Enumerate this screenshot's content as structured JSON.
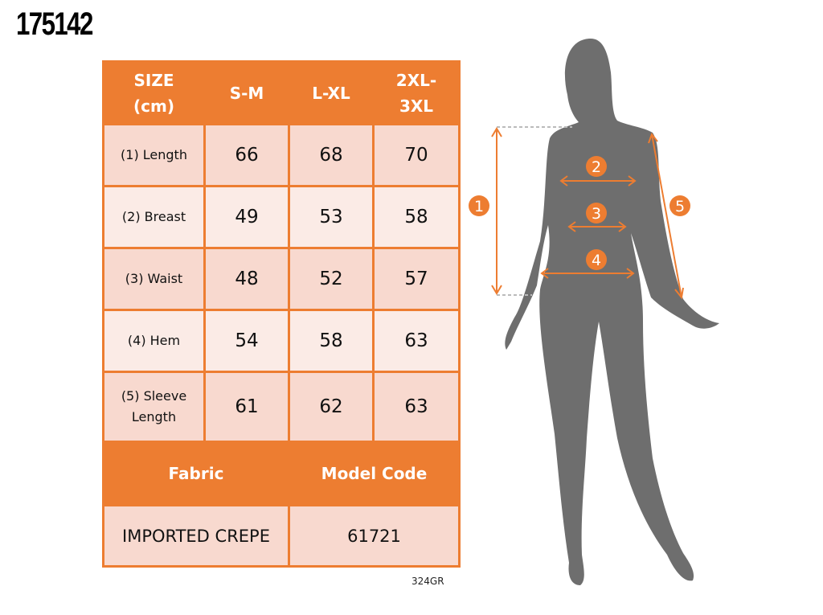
{
  "product_code": "175142",
  "table": {
    "header": [
      "SIZE (cm)",
      "S-M",
      "L-XL",
      "2XL-3XL"
    ],
    "rows": [
      {
        "label": "(1) Length",
        "values": [
          "66",
          "68",
          "70"
        ]
      },
      {
        "label": "(2) Breast",
        "values": [
          "49",
          "53",
          "58"
        ]
      },
      {
        "label": "(3) Waist",
        "values": [
          "48",
          "52",
          "57"
        ]
      },
      {
        "label": "(4) Hem",
        "values": [
          "54",
          "58",
          "63"
        ]
      },
      {
        "label": "(5) Sleeve Length",
        "values": [
          "61",
          "62",
          "63"
        ]
      }
    ],
    "fabric_label": "Fabric",
    "model_code_label": "Model Code",
    "fabric_value": "IMPORTED CREPE",
    "model_code_value": "61721"
  },
  "footer_code": "324GR",
  "figure": {
    "markers": [
      "1",
      "2",
      "3",
      "4",
      "5"
    ]
  },
  "colors": {
    "accent": "#ED7D31",
    "row_dark": "#F8D9CF",
    "row_light": "#FBEBE6",
    "silhouette": "#6E6E6E"
  }
}
